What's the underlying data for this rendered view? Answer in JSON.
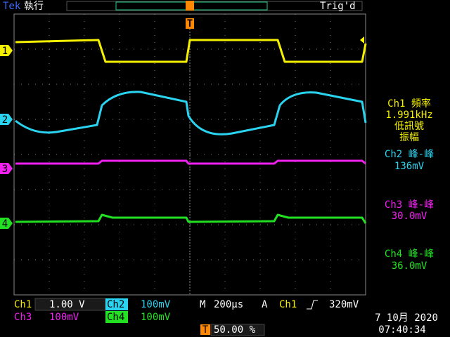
{
  "header": {
    "brand": "Tek",
    "status": "執行",
    "trigger_state": "Trig'd",
    "trigger_marker": "T"
  },
  "channel_markers": [
    "1",
    "2",
    "3",
    "4"
  ],
  "measurements": [
    {
      "label": "Ch1 頻率",
      "value": "1.991kHz",
      "note": [
        "低訊號",
        "振幅"
      ]
    },
    {
      "label": "Ch2 峰-峰",
      "value": "136mV"
    },
    {
      "label": "Ch3 峰-峰",
      "value": "30.0mV"
    },
    {
      "label": "Ch4 峰-峰",
      "value": "36.0mV"
    }
  ],
  "settings": {
    "ch1": {
      "name": "Ch1",
      "scale": "1.00 V"
    },
    "ch2": {
      "name": "Ch2",
      "scale": "100mV"
    },
    "ch3": {
      "name": "Ch3",
      "scale": "100mV"
    },
    "ch4": {
      "name": "Ch4",
      "scale": "100mV"
    },
    "timebase": {
      "label": "M",
      "scale": "200µs"
    },
    "trigger": {
      "mode": "A",
      "source": "Ch1",
      "level": "320mV"
    },
    "position": {
      "marker": "T",
      "value": "50.00 %"
    },
    "date": "7 10月 2020",
    "time": "07:40:34"
  }
}
